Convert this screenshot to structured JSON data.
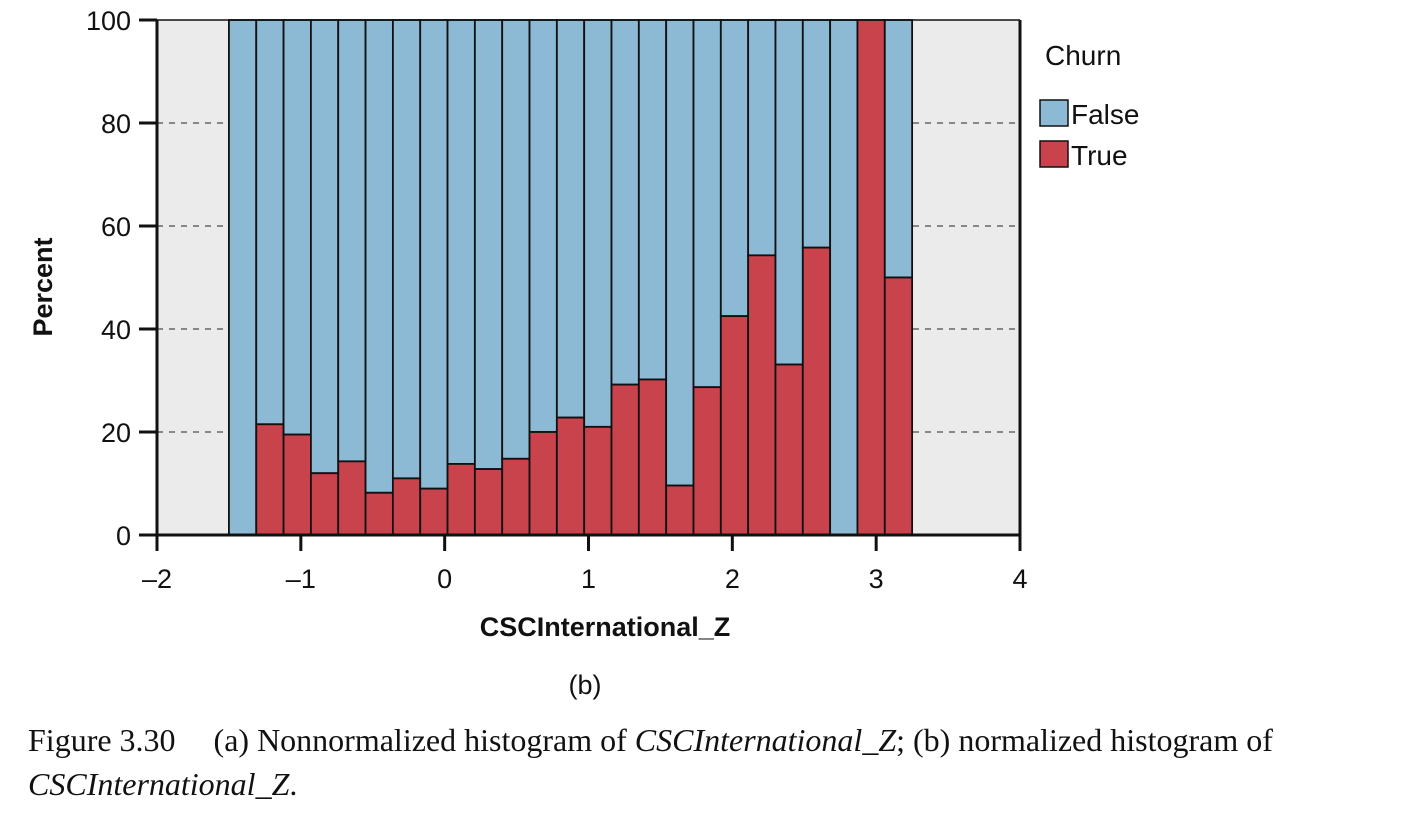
{
  "chart_data": {
    "type": "bar",
    "stacked": true,
    "normalized": true,
    "xlabel": "CSCInternational_Z",
    "ylabel": "Percent",
    "panel_label": "(b)",
    "xlim": [
      -2,
      4
    ],
    "ylim": [
      0,
      100
    ],
    "x_ticks": [
      "–2",
      "–1",
      "0",
      "1",
      "2",
      "3",
      "4"
    ],
    "y_ticks": [
      "0",
      "20",
      "40",
      "60",
      "80",
      "100"
    ],
    "grid": "dashed horizontal at y ticks",
    "legend": {
      "title": "Churn",
      "placement": "right",
      "entries": [
        "False",
        "True"
      ]
    },
    "colors": {
      "False": "#8cb9d3",
      "True": "#c9434c",
      "background": "#ebebeb"
    },
    "bin_edges": [
      -1.5,
      -1.31,
      -1.12,
      -0.93,
      -0.74,
      -0.55,
      -0.36,
      -0.17,
      0.02,
      0.21,
      0.4,
      0.59,
      0.78,
      0.97,
      1.16,
      1.35,
      1.54,
      1.73,
      1.92,
      2.11,
      2.3,
      2.49,
      2.68,
      2.87,
      3.06,
      3.25
    ],
    "series": [
      {
        "name": "True",
        "values": [
          0,
          21.5,
          19.5,
          12,
          14.3,
          8.2,
          11,
          9,
          13.8,
          12.8,
          14.8,
          20,
          22.8,
          21,
          29.2,
          30.2,
          9.6,
          28.7,
          42.5,
          54.3,
          33.1,
          55.8,
          0,
          100,
          50
        ]
      },
      {
        "name": "False",
        "values": [
          100,
          78.5,
          80.5,
          88,
          85.7,
          91.8,
          89,
          91,
          86.2,
          87.2,
          85.2,
          80,
          77.2,
          79,
          70.8,
          69.8,
          90.4,
          71.3,
          57.5,
          45.7,
          66.9,
          44.2,
          100,
          0,
          50
        ]
      }
    ]
  },
  "caption": {
    "figure_label": "Figure 3.30",
    "part_a_prefix": "(a) Nonnormalized histogram of ",
    "variable": "CSCInternational_Z",
    "part_b_mid": "; (b) normalized histogram of ",
    "end": "."
  }
}
